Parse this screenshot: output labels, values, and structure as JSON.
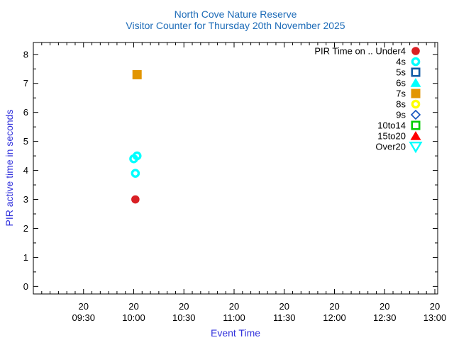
{
  "colors": {
    "title": "#1e6cb8",
    "axis_label": "#3232dc",
    "axis": "#000000",
    "background": "#ffffff"
  },
  "chart_data": {
    "type": "scatter",
    "title": "North Cove Nature Reserve",
    "subtitle": "Visitor Counter for Thursday 20th November 2025",
    "xlabel": "Event Time",
    "ylabel": "PIR active time in seconds",
    "x_tick_day_label": "20",
    "x_tick_times": [
      "09:30",
      "10:00",
      "10:30",
      "11:00",
      "11:30",
      "12:00",
      "12:30",
      "13:00"
    ],
    "x_minor_interval_minutes": 5,
    "xlim_minutes": [
      540,
      781.7
    ],
    "y_ticks": [
      0,
      1,
      2,
      3,
      4,
      5,
      6,
      7,
      8
    ],
    "y_minor_interval": 0.5,
    "ylim": [
      -0.26,
      8.41
    ],
    "grid": false,
    "legend_position": "top-right-inside",
    "series": [
      {
        "label": "PIR Time on .. Under4",
        "marker": "filled-circle",
        "color": "#d92025",
        "points": [
          {
            "time": "10:01",
            "value": 3.0
          }
        ]
      },
      {
        "label": "4s",
        "marker": "open-circle",
        "color": "#00ffff",
        "points": [
          {
            "time": "10:00",
            "value": 4.4
          },
          {
            "time": "10:02",
            "value": 4.5
          },
          {
            "time": "10:01",
            "value": 3.9
          }
        ]
      },
      {
        "label": "5s",
        "marker": "open-square",
        "color": "#0f5aa5",
        "points": []
      },
      {
        "label": "6s",
        "marker": "filled-triangle-up",
        "color": "#00ffff",
        "points": []
      },
      {
        "label": "7s",
        "marker": "filled-square",
        "color": "#e29500",
        "points": [
          {
            "time": "10:02",
            "value": 7.3
          }
        ]
      },
      {
        "label": "8s",
        "marker": "open-circle",
        "color": "#ffff00",
        "points": []
      },
      {
        "label": "9s",
        "marker": "open-diamond",
        "color": "#1352be",
        "points": []
      },
      {
        "label": "10to14",
        "marker": "open-square",
        "color": "#00cc00",
        "points": []
      },
      {
        "label": "15to20",
        "marker": "filled-triangle-up",
        "color": "#ff0000",
        "points": []
      },
      {
        "label": "Over20",
        "marker": "open-triangle-down",
        "color": "#00ffff",
        "points": []
      }
    ]
  }
}
